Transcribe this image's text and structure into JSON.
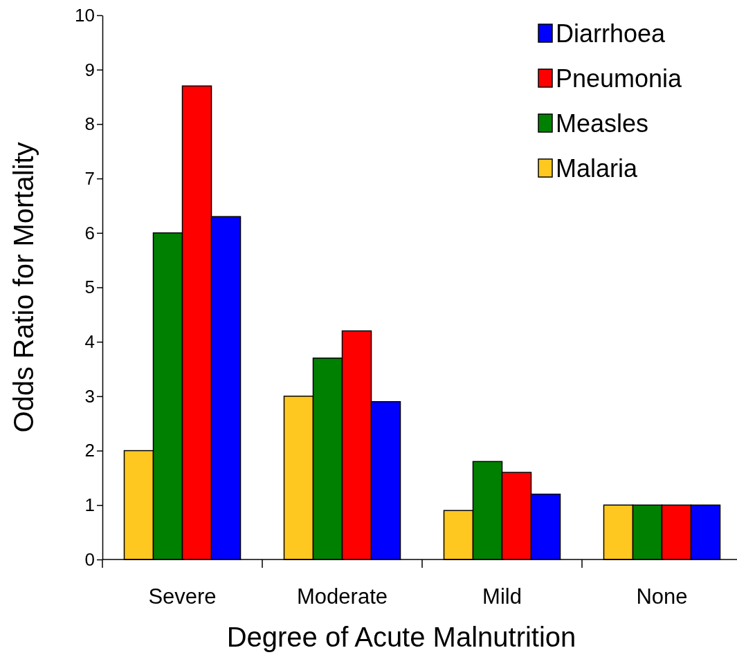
{
  "chart_data": {
    "type": "bar",
    "xlabel": "Degree of Acute Malnutrition",
    "ylabel": "Odds Ratio for Mortality",
    "categories": [
      "Severe",
      "Moderate",
      "Mild",
      "None"
    ],
    "series": [
      {
        "name": "Malaria",
        "color": "#ffc820",
        "values": [
          2,
          3,
          0.9,
          1
        ]
      },
      {
        "name": "Measles",
        "color": "#008000",
        "values": [
          6,
          3.7,
          1.8,
          1
        ]
      },
      {
        "name": "Pneumonia",
        "color": "#ff0000",
        "values": [
          8.7,
          4.2,
          1.6,
          1
        ]
      },
      {
        "name": "Diarrhoea",
        "color": "#0000ff",
        "values": [
          6.3,
          2.9,
          1.2,
          1
        ]
      }
    ],
    "ylim": [
      0,
      10
    ],
    "yticks": [
      0,
      1,
      2,
      3,
      4,
      5,
      6,
      7,
      8,
      9,
      10
    ],
    "grid": false,
    "legend": "top right"
  }
}
